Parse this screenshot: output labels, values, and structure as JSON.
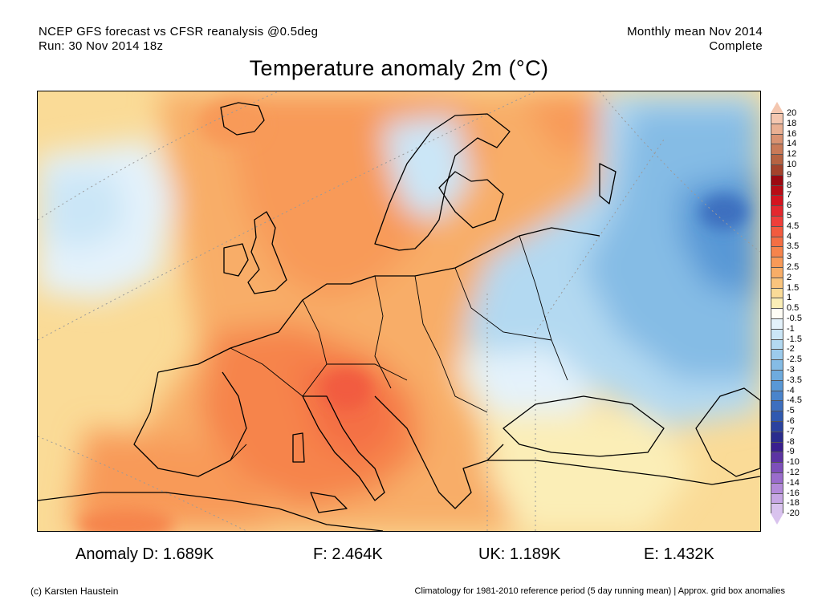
{
  "header": {
    "line1_left": "NCEP GFS forecast vs CFSR reanalysis @0.5deg",
    "line2_left": "Run: 30 Nov 2014 18z",
    "line1_right": "Monthly mean Nov 2014",
    "line2_right": "Complete"
  },
  "title": "Temperature anomaly 2m (°C)",
  "legend": {
    "labels": [
      "20",
      "18",
      "16",
      "14",
      "12",
      "10",
      "9",
      "8",
      "7",
      "6",
      "5",
      "4.5",
      "4",
      "3.5",
      "3",
      "2.5",
      "2",
      "1.5",
      "1",
      "0.5",
      "-0.5",
      "-1",
      "-1.5",
      "-2",
      "-2.5",
      "-3",
      "-3.5",
      "-4",
      "-4.5",
      "-5",
      "-6",
      "-7",
      "-8",
      "-9",
      "-10",
      "-12",
      "-14",
      "-16",
      "-18",
      "-20"
    ],
    "colors": [
      "#f4c7b0",
      "#e9b093",
      "#d99272",
      "#c97a58",
      "#b66342",
      "#a4432c",
      "#9c0a12",
      "#b80d16",
      "#d4141f",
      "#e3282e",
      "#ee3f3a",
      "#f25b3f",
      "#f46f44",
      "#f6844c",
      "#f89a58",
      "#f8ad67",
      "#f9c47d",
      "#fadb97",
      "#fbeeb7",
      "#fffdf5",
      "#e4f2fb",
      "#cbe6f7",
      "#b3d9f1",
      "#9ccbec",
      "#85bce5",
      "#6eabde",
      "#5998d6",
      "#4a84cc",
      "#3d6fbf",
      "#3059b0",
      "#2b429f",
      "#2a2c8e",
      "#3a1f8f",
      "#5c33a3",
      "#7d4fba",
      "#9a6ccc",
      "#b38ad9",
      "#c7a7e4",
      "#d9c3ee"
    ],
    "top_tri_color": "#f4c7b0",
    "bottom_tri_color": "#d9c3ee"
  },
  "stats": [
    {
      "text": "Anomaly D: 1.689K"
    },
    {
      "text": "F: 2.464K"
    },
    {
      "text": "UK: 1.189K"
    },
    {
      "text": "E: 1.432K"
    }
  ],
  "footer": {
    "left": "(c) Karsten Haustein",
    "right": "Climatology for 1981-2010 reference period (5 day running mean) | Approx. grid box anomalies"
  }
}
